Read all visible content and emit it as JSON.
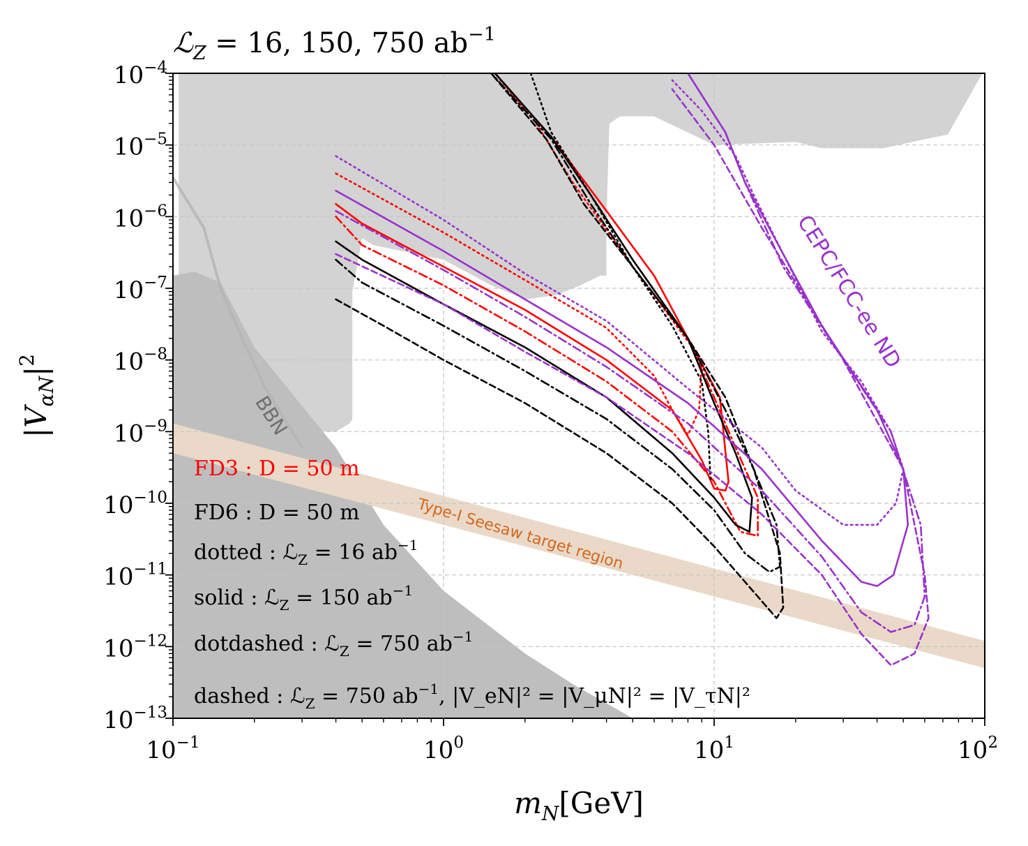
{
  "chart_data": {
    "type": "line",
    "title": "ℒ",
    "title_sub": "Z",
    "title_rest": " = 16, 150, 750 ab",
    "title_exp": "−1",
    "xlabel": {
      "main": "m",
      "sub": "N",
      "unit": "[GeV]"
    },
    "ylabel": {
      "main": "|V",
      "sub": "αN",
      "post": "|",
      "exp": "2"
    },
    "x_scale": "log",
    "y_scale": "log",
    "xlim": [
      0.1,
      100
    ],
    "ylim": [
      1e-13,
      0.0001
    ],
    "x_ticks": [
      {
        "value": 0.1,
        "base": "10",
        "exp": "−1"
      },
      {
        "value": 1,
        "base": "10",
        "exp": "0"
      },
      {
        "value": 10,
        "base": "10",
        "exp": "1"
      },
      {
        "value": 100,
        "base": "10",
        "exp": "2"
      }
    ],
    "y_ticks": [
      {
        "value": 0.0001,
        "base": "10",
        "exp": "−4"
      },
      {
        "value": 1e-05,
        "base": "10",
        "exp": "−5"
      },
      {
        "value": 1e-06,
        "base": "10",
        "exp": "−6"
      },
      {
        "value": 1e-07,
        "base": "10",
        "exp": "−7"
      },
      {
        "value": 1e-08,
        "base": "10",
        "exp": "−8"
      },
      {
        "value": 1e-09,
        "base": "10",
        "exp": "−9"
      },
      {
        "value": 1e-10,
        "base": "10",
        "exp": "−10"
      },
      {
        "value": 1e-11,
        "base": "10",
        "exp": "−11"
      },
      {
        "value": 1e-12,
        "base": "10",
        "exp": "−12"
      },
      {
        "value": 1e-13,
        "base": "10",
        "exp": "−13"
      }
    ],
    "grid": true,
    "colors": {
      "fd3": "#ff0000",
      "fd6": "#000000",
      "cepc": "#9932cc",
      "seesaw_fill": "#ead9c8",
      "seesaw_text": "#d2691e",
      "excluded_light": "#d3d3d3",
      "excluded_dark": "#bebebe",
      "bbn_line": "#b4b4b4",
      "bbn_text": "#707070",
      "grid": "#c4c4c4"
    },
    "regions": [
      {
        "name": "existing-constraints",
        "color": "#d3d3d3",
        "points": [
          [
            0.105,
            0.0001
          ],
          [
            0.105,
            1e-09
          ],
          [
            0.13,
            1.1e-09
          ],
          [
            0.2,
            1.1e-09
          ],
          [
            0.3,
            1e-09
          ],
          [
            0.4,
            1e-09
          ],
          [
            0.45,
            1.3e-09
          ],
          [
            0.46,
            1.5e-09
          ],
          [
            0.46,
            9e-08
          ],
          [
            0.5,
            5e-07
          ],
          [
            0.55,
            4e-07
          ],
          [
            1,
            2.5e-07
          ],
          [
            1.5,
            1.1e-07
          ],
          [
            2,
            7e-08
          ],
          [
            2.6,
            8e-08
          ],
          [
            3.2,
            1.1e-07
          ],
          [
            3.8,
            1.5e-07
          ],
          [
            4,
            1.5e-07
          ],
          [
            4,
            1e-06
          ],
          [
            4.1,
            2e-05
          ],
          [
            4.5,
            2.5e-05
          ],
          [
            6,
            2.5e-05
          ],
          [
            10,
            1e-05
          ],
          [
            20,
            1.1e-05
          ],
          [
            25,
            9e-06
          ],
          [
            42,
            9e-06
          ],
          [
            60,
            1.2e-05
          ],
          [
            73,
            1.4e-05
          ],
          [
            98,
            0.0001
          ]
        ]
      },
      {
        "name": "bbn-excluded",
        "color": "#bebebe",
        "points": [
          [
            0.1,
            1e-13
          ],
          [
            0.1,
            1.5e-07
          ],
          [
            0.12,
            1.7e-07
          ],
          [
            0.15,
            1.2e-07
          ],
          [
            0.2,
            1.5e-08
          ],
          [
            0.4,
            6e-10
          ],
          [
            0.6,
            5e-11
          ],
          [
            1,
            6e-12
          ],
          [
            2,
            8e-13
          ],
          [
            3,
            3e-13
          ],
          [
            5,
            1e-13
          ]
        ]
      },
      {
        "name": "seesaw-target-band",
        "color": "#ead9c8",
        "points": [
          [
            0.1,
            1.3e-09
          ],
          [
            100,
            1.2e-12
          ],
          [
            100,
            5e-13
          ],
          [
            0.1,
            5e-10
          ]
        ]
      }
    ],
    "series": [
      {
        "name": "BBN boundary",
        "color": "#b4b4b4",
        "dash": "solid",
        "width": 4,
        "points": [
          [
            0.1,
            3.5e-06
          ],
          [
            0.13,
            7e-07
          ],
          [
            0.15,
            1e-07
          ],
          [
            0.18,
            2e-08
          ],
          [
            0.22,
            4e-09
          ],
          [
            0.3,
            6e-10
          ]
        ]
      },
      {
        "name": "FD3 dotted L_Z=16 ab^-1",
        "color": "#ff0000",
        "dash": "dotted",
        "points": [
          [
            0.4,
            4e-06
          ],
          [
            1,
            6e-07
          ],
          [
            2,
            1.3e-07
          ],
          [
            4,
            2.8e-08
          ],
          [
            6,
            6e-09
          ],
          [
            7,
            2e-09
          ],
          [
            8,
            9e-10
          ],
          [
            8.8,
            2e-09
          ],
          [
            9,
            1e-08
          ],
          [
            5,
            2e-07
          ],
          [
            3,
            3e-06
          ],
          [
            2.2,
            2e-05
          ],
          [
            1.55,
            0.0001
          ]
        ]
      },
      {
        "name": "FD3 solid L_Z=150 ab^-1",
        "color": "#ff0000",
        "dash": "solid",
        "points": [
          [
            0.4,
            1.5e-06
          ],
          [
            0.5,
            8e-07
          ],
          [
            1,
            2e-07
          ],
          [
            2,
            5e-08
          ],
          [
            4,
            1e-08
          ],
          [
            7,
            2e-09
          ],
          [
            9,
            4e-10
          ],
          [
            10,
            1.6e-10
          ],
          [
            11,
            1.5e-10
          ],
          [
            11.3,
            2e-10
          ],
          [
            10.5,
            3e-09
          ],
          [
            8,
            2e-08
          ],
          [
            6,
            1.5e-07
          ],
          [
            4,
            1.2e-06
          ],
          [
            2.5,
            1.3e-05
          ],
          [
            1.55,
            0.0001
          ]
        ]
      },
      {
        "name": "FD3 dotdashed L_Z=750 ab^-1",
        "color": "#ff0000",
        "dash": "dashdot",
        "points": [
          [
            0.4,
            1e-06
          ],
          [
            0.5,
            4e-07
          ],
          [
            1,
            1.1e-07
          ],
          [
            2,
            2.5e-08
          ],
          [
            4,
            5e-09
          ],
          [
            7,
            1e-09
          ],
          [
            10,
            2e-10
          ],
          [
            12.5,
            4e-11
          ],
          [
            14.5,
            3.5e-11
          ],
          [
            14.5,
            1.2e-10
          ],
          [
            12,
            6e-10
          ],
          [
            10,
            3e-09
          ],
          [
            8,
            2e-08
          ],
          [
            5,
            2.5e-07
          ],
          [
            3.5,
            2e-06
          ],
          [
            2.5,
            1.3e-05
          ],
          [
            1.55,
            0.0001
          ]
        ]
      },
      {
        "name": "FD6 dotted L_Z=16 ab^-1",
        "color": "#000000",
        "dash": "dotted",
        "points": [
          [
            2.1,
            0.0001
          ],
          [
            2.5,
            1.5e-05
          ],
          [
            3.5,
            2e-06
          ],
          [
            5,
            2e-07
          ],
          [
            7,
            3e-08
          ],
          [
            9,
            5e-09
          ],
          [
            9.5,
            1e-09
          ],
          [
            9.7,
            2e-10
          ]
        ]
      },
      {
        "name": "FD6 solid L_Z=150 ab^-1",
        "color": "#000000",
        "dash": "solid",
        "points": [
          [
            0.4,
            4.5e-07
          ],
          [
            0.5,
            2.5e-07
          ],
          [
            1,
            6e-08
          ],
          [
            2,
            1.5e-08
          ],
          [
            4,
            3e-09
          ],
          [
            7,
            5e-10
          ],
          [
            10,
            1.2e-10
          ],
          [
            12,
            5e-11
          ],
          [
            13.5,
            4e-11
          ],
          [
            13.8,
            1.2e-10
          ],
          [
            12,
            5e-10
          ],
          [
            10,
            2.5e-09
          ],
          [
            8,
            2e-08
          ],
          [
            5,
            2.5e-07
          ],
          [
            3.5,
            2e-06
          ],
          [
            2.5,
            1.3e-05
          ],
          [
            1.55,
            0.0001
          ]
        ]
      },
      {
        "name": "FD6 dotdashed L_Z=750 ab^-1",
        "color": "#000000",
        "dash": "dashdot",
        "points": [
          [
            0.4,
            2.5e-07
          ],
          [
            0.5,
            1.2e-07
          ],
          [
            1,
            3e-08
          ],
          [
            2,
            7e-09
          ],
          [
            4,
            1.5e-09
          ],
          [
            7,
            3e-10
          ],
          [
            10,
            8e-11
          ],
          [
            13,
            2e-11
          ],
          [
            16,
            1.1e-11
          ],
          [
            17.5,
            1.3e-11
          ],
          [
            17,
            5e-11
          ],
          [
            14,
            3e-10
          ],
          [
            11,
            2e-09
          ],
          [
            8,
            2e-08
          ],
          [
            5,
            2e-07
          ],
          [
            3.5,
            1.5e-06
          ],
          [
            2.5,
            1.2e-05
          ],
          [
            1.5,
            0.0001
          ]
        ]
      },
      {
        "name": "FD6 dashed |V_eN|^2=|V_muN|^2=|V_tauN|^2",
        "color": "#000000",
        "dash": "dashed",
        "points": [
          [
            0.4,
            7e-08
          ],
          [
            0.6,
            3e-08
          ],
          [
            1,
            1e-08
          ],
          [
            2,
            2.5e-09
          ],
          [
            4,
            5e-10
          ],
          [
            7,
            1e-10
          ],
          [
            10,
            2.5e-11
          ],
          [
            13,
            8e-12
          ],
          [
            17,
            2.5e-12
          ],
          [
            18,
            3.5e-12
          ],
          [
            17.5,
            2e-11
          ],
          [
            14,
            3e-10
          ],
          [
            11,
            3e-09
          ],
          [
            8,
            2e-08
          ],
          [
            5,
            2e-07
          ],
          [
            3.3,
            1.5e-06
          ],
          [
            2.4,
            1.2e-05
          ],
          [
            1.5,
            0.0001
          ]
        ]
      },
      {
        "name": "CEPC/FCC-ee ND dotted L_Z=16 ab^-1",
        "color": "#9932cc",
        "dash": "dotted",
        "points": [
          [
            0.4,
            7e-06
          ],
          [
            1,
            9e-07
          ],
          [
            2,
            1.6e-07
          ],
          [
            4,
            3.5e-08
          ],
          [
            8,
            4e-09
          ],
          [
            15,
            6e-10
          ],
          [
            20,
            1.5e-10
          ],
          [
            30,
            5e-11
          ],
          [
            40,
            5e-11
          ],
          [
            47,
            1e-10
          ],
          [
            50,
            3e-10
          ],
          [
            45,
            1e-09
          ],
          [
            35,
            5e-09
          ],
          [
            25,
            2.5e-08
          ],
          [
            18,
            3e-07
          ],
          [
            14,
            2e-06
          ],
          [
            12,
            7e-06
          ],
          [
            9,
            3e-05
          ],
          [
            7,
            8e-05
          ]
        ]
      },
      {
        "name": "CEPC/FCC-ee ND solid L_Z=150 ab^-1",
        "color": "#9932cc",
        "dash": "solid",
        "points": [
          [
            0.4,
            2.3e-06
          ],
          [
            1,
            3.3e-07
          ],
          [
            2,
            7e-08
          ],
          [
            4,
            1.5e-08
          ],
          [
            8,
            2.5e-09
          ],
          [
            15,
            3e-10
          ],
          [
            25,
            3e-11
          ],
          [
            35,
            8e-12
          ],
          [
            40,
            7e-12
          ],
          [
            46,
            1e-11
          ],
          [
            52,
            5e-11
          ],
          [
            50,
            3e-10
          ],
          [
            40,
            2e-09
          ],
          [
            25,
            3e-08
          ],
          [
            18,
            3e-07
          ],
          [
            13,
            3e-06
          ],
          [
            11,
            1.5e-05
          ],
          [
            8,
            0.0001
          ]
        ]
      },
      {
        "name": "CEPC/FCC-ee ND dotdashed L_Z=750 ab^-1",
        "color": "#9932cc",
        "dash": "dashdot",
        "points": [
          [
            0.4,
            1.2e-06
          ],
          [
            1,
            1.8e-07
          ],
          [
            2,
            4e-08
          ],
          [
            4,
            8e-09
          ],
          [
            8,
            1.3e-09
          ],
          [
            15,
            1.5e-10
          ],
          [
            25,
            1.8e-11
          ],
          [
            35,
            3e-12
          ],
          [
            45,
            1.6e-12
          ],
          [
            55,
            2e-12
          ],
          [
            60,
            5e-12
          ],
          [
            58,
            5e-11
          ],
          [
            45,
            1e-09
          ],
          [
            28,
            1.5e-08
          ],
          [
            18,
            2e-07
          ],
          [
            13,
            3e-06
          ],
          [
            11,
            1.5e-05
          ],
          [
            8,
            0.0001
          ]
        ]
      },
      {
        "name": "CEPC/FCC-ee ND dashed |V_eN|^2=|V_muN|^2=|V_tauN|^2",
        "color": "#9932cc",
        "dash": "dashed",
        "points": [
          [
            0.4,
            3e-07
          ],
          [
            1,
            6e-08
          ],
          [
            2,
            1.3e-08
          ],
          [
            4,
            3e-09
          ],
          [
            8,
            5e-10
          ],
          [
            15,
            7e-11
          ],
          [
            25,
            1e-11
          ],
          [
            35,
            1.5e-12
          ],
          [
            45,
            5.5e-13
          ],
          [
            55,
            8e-13
          ],
          [
            62,
            2.5e-12
          ],
          [
            60,
            1e-11
          ],
          [
            50,
            3e-10
          ],
          [
            30,
            1e-08
          ],
          [
            15,
            7e-07
          ],
          [
            10,
            1e-05
          ],
          [
            7,
            6e-05
          ]
        ]
      }
    ],
    "annotations": [
      {
        "name": "bbn-label",
        "text": "BBN",
        "x": 0.22,
        "y": 1.5e-09,
        "rotation": 58,
        "color": "#707070"
      },
      {
        "name": "seesaw-label",
        "text": "Type-I Seesaw target region",
        "x": 1.9,
        "y": 3.2e-11,
        "rotation": 16.5,
        "color": "#d2691e"
      },
      {
        "name": "cepc-label",
        "text": "CEPC/FCC-ee ND",
        "x": 30,
        "y": 8e-08,
        "rotation": 58,
        "color": "#9932cc"
      }
    ],
    "legend": {
      "placement": "bottom-left",
      "fd3": {
        "text": "FD3 : D = 50 m",
        "color": "#ff0000"
      },
      "fd6": {
        "text": "FD6 : D = 50 m",
        "color": "#000000"
      },
      "dotted": {
        "text": "dotted : ℒ",
        "sub": "Z",
        "rest": " = 16 ab",
        "exp": "−1"
      },
      "solid": {
        "text": "solid : ℒ",
        "sub": "Z",
        "rest": " = 150 ab",
        "exp": "−1"
      },
      "dotdashed": {
        "text": "dotdashed : ℒ",
        "sub": "Z",
        "rest": " = 750 ab",
        "exp": "−1"
      },
      "dashed": {
        "text": "dashed : ℒ",
        "sub": "Z",
        "rest": " = 750 ab",
        "exp": "−1",
        "tail": ", |V_eN|² = |V_μN|² = |V_τN|²"
      }
    }
  }
}
